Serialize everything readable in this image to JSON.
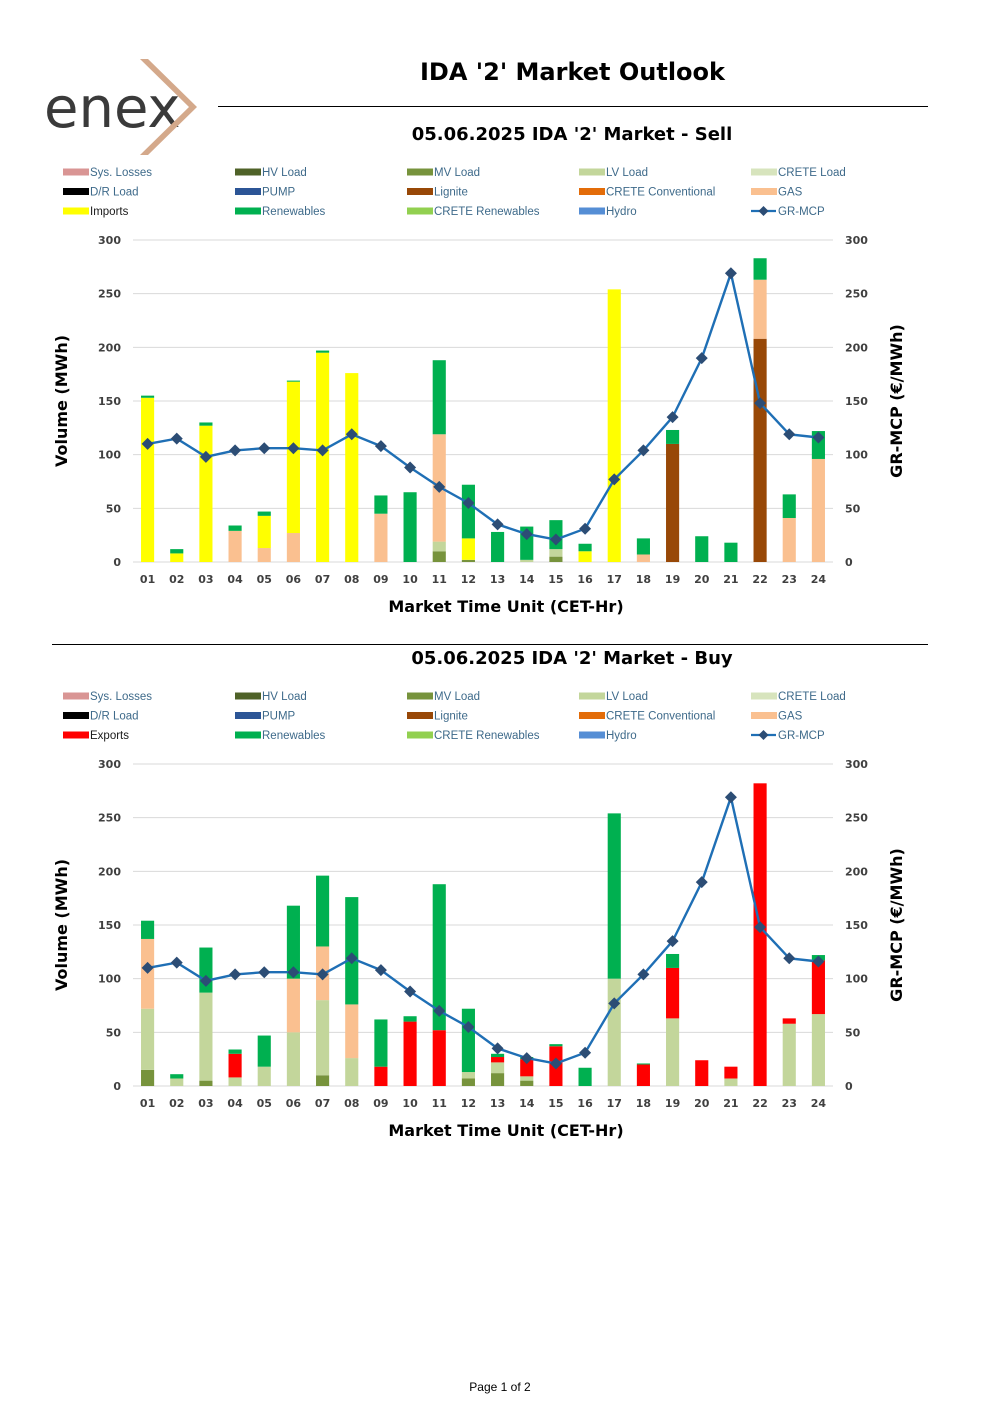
{
  "header": {
    "logo_text": "enex",
    "title": "IDA '2' Market Outlook"
  },
  "footer": {
    "page_label": "Page 1 of 2"
  },
  "colors": {
    "Sys. Losses": "#d99594",
    "HV Load": "#4f6228",
    "MV Load": "#77933c",
    "LV Load": "#c3d69b",
    "CRETE Load": "#d7e4bd",
    "D/R Load": "#000000",
    "PUMP": "#2c5596",
    "Lignite": "#984807",
    "CRETE Conventional": "#e36c09",
    "GAS": "#fac090",
    "Imports": "#ffff00",
    "Exports": "#ff0000",
    "Renewables": "#00b050",
    "CRETE Renewables": "#92d050",
    "Hydro": "#558ed5",
    "GR-MCP": "#1f6fb5",
    "mcp_marker": "#2c4d75",
    "logo_text": "#3a3a3a",
    "logo_accent": "#d4a98b"
  },
  "chart_data": [
    {
      "type": "bar",
      "stacked": true,
      "title": "05.06.2025  IDA '2' Market - Sell",
      "xlabel": "Market Time Unit (CET-Hr)",
      "ylabel": "Volume (MWh)",
      "y2label": "GR-MCP (€/MWh)",
      "ylim": [
        0,
        300
      ],
      "y2lim": [
        0,
        300
      ],
      "yticks": [
        0,
        50,
        100,
        150,
        200,
        250,
        300
      ],
      "grid": true,
      "legend": [
        "Sys. Losses",
        "HV Load",
        "MV Load",
        "LV Load",
        "CRETE Load",
        "D/R Load",
        "PUMP",
        "Lignite",
        "CRETE Conventional",
        "GAS",
        "Imports",
        "Renewables",
        "CRETE Renewables",
        "Hydro",
        "GR-MCP"
      ],
      "legend_position": "top",
      "categories": [
        "01",
        "02",
        "03",
        "04",
        "05",
        "06",
        "07",
        "08",
        "09",
        "10",
        "11",
        "12",
        "13",
        "14",
        "15",
        "16",
        "17",
        "18",
        "19",
        "20",
        "21",
        "22",
        "23",
        "24"
      ],
      "series": [
        {
          "name": "MV Load",
          "values": [
            0,
            0,
            0,
            0,
            0,
            0,
            0,
            0,
            0,
            0,
            10,
            2,
            0,
            0,
            5,
            0,
            0,
            0,
            0,
            0,
            0,
            0,
            0,
            0
          ]
        },
        {
          "name": "LV Load",
          "values": [
            0,
            0,
            0,
            0,
            0,
            0,
            0,
            0,
            0,
            0,
            9,
            0,
            0,
            2,
            7,
            0,
            0,
            0,
            0,
            0,
            0,
            0,
            0,
            0
          ]
        },
        {
          "name": "Lignite",
          "values": [
            0,
            0,
            0,
            0,
            0,
            0,
            0,
            0,
            0,
            0,
            0,
            0,
            0,
            0,
            0,
            0,
            0,
            0,
            110,
            0,
            0,
            208,
            0,
            0
          ]
        },
        {
          "name": "GAS",
          "values": [
            0,
            0,
            0,
            29,
            13,
            27,
            0,
            0,
            45,
            0,
            100,
            0,
            0,
            0,
            0,
            0,
            0,
            7,
            0,
            0,
            0,
            55,
            41,
            96
          ]
        },
        {
          "name": "Imports",
          "values": [
            153,
            8,
            127,
            0,
            30,
            141,
            195,
            176,
            0,
            0,
            0,
            20,
            0,
            0,
            0,
            10,
            254,
            0,
            0,
            0,
            0,
            0,
            0,
            0
          ]
        },
        {
          "name": "Renewables",
          "values": [
            2,
            4,
            3,
            5,
            4,
            1,
            2,
            0,
            17,
            65,
            69,
            50,
            28,
            31,
            27,
            7,
            0,
            15,
            13,
            24,
            18,
            20,
            22,
            26
          ]
        }
      ],
      "line_series": {
        "name": "GR-MCP",
        "axis": "y2",
        "values": [
          110,
          115,
          98,
          104,
          106,
          106,
          104,
          119,
          108,
          88,
          70,
          55,
          35,
          26,
          21,
          31,
          77,
          104,
          135,
          190,
          269,
          148,
          119,
          116
        ]
      }
    },
    {
      "type": "bar",
      "stacked": true,
      "title": "05.06.2025  IDA '2' Market - Buy",
      "xlabel": "Market Time Unit (CET-Hr)",
      "ylabel": "Volume (MWh)",
      "y2label": "GR-MCP (€/MWh)",
      "ylim": [
        0,
        300
      ],
      "y2lim": [
        0,
        300
      ],
      "yticks": [
        0,
        50,
        100,
        150,
        200,
        250,
        300
      ],
      "grid": true,
      "legend": [
        "Sys. Losses",
        "HV Load",
        "MV Load",
        "LV Load",
        "CRETE Load",
        "D/R Load",
        "PUMP",
        "Lignite",
        "CRETE Conventional",
        "GAS",
        "Exports",
        "Renewables",
        "CRETE Renewables",
        "Hydro",
        "GR-MCP"
      ],
      "legend_position": "top",
      "categories": [
        "01",
        "02",
        "03",
        "04",
        "05",
        "06",
        "07",
        "08",
        "09",
        "10",
        "11",
        "12",
        "13",
        "14",
        "15",
        "16",
        "17",
        "18",
        "19",
        "20",
        "21",
        "22",
        "23",
        "24"
      ],
      "series": [
        {
          "name": "MV Load",
          "values": [
            15,
            0,
            5,
            0,
            0,
            0,
            10,
            0,
            0,
            0,
            0,
            7,
            12,
            5,
            0,
            0,
            0,
            0,
            0,
            0,
            0,
            0,
            0,
            0
          ]
        },
        {
          "name": "LV Load",
          "values": [
            57,
            7,
            82,
            8,
            18,
            50,
            70,
            26,
            0,
            0,
            0,
            6,
            10,
            4,
            0,
            0,
            100,
            0,
            63,
            0,
            7,
            0,
            58,
            67
          ]
        },
        {
          "name": "GAS",
          "values": [
            65,
            0,
            0,
            0,
            0,
            50,
            50,
            50,
            0,
            0,
            0,
            0,
            0,
            0,
            0,
            0,
            0,
            0,
            0,
            0,
            0,
            0,
            0,
            0
          ]
        },
        {
          "name": "Exports",
          "values": [
            0,
            0,
            0,
            22,
            0,
            0,
            0,
            0,
            18,
            60,
            52,
            0,
            5,
            16,
            37,
            0,
            0,
            20,
            47,
            24,
            11,
            282,
            5,
            50
          ]
        },
        {
          "name": "Renewables",
          "values": [
            17,
            4,
            42,
            4,
            29,
            68,
            66,
            100,
            44,
            5,
            136,
            59,
            3,
            2,
            2,
            17,
            154,
            1,
            13,
            0,
            0,
            0,
            0,
            5
          ]
        }
      ],
      "line_series": {
        "name": "GR-MCP",
        "axis": "y2",
        "values": [
          110,
          115,
          98,
          104,
          106,
          106,
          104,
          119,
          108,
          88,
          70,
          55,
          35,
          26,
          21,
          31,
          77,
          104,
          135,
          190,
          269,
          148,
          119,
          116
        ]
      }
    }
  ]
}
